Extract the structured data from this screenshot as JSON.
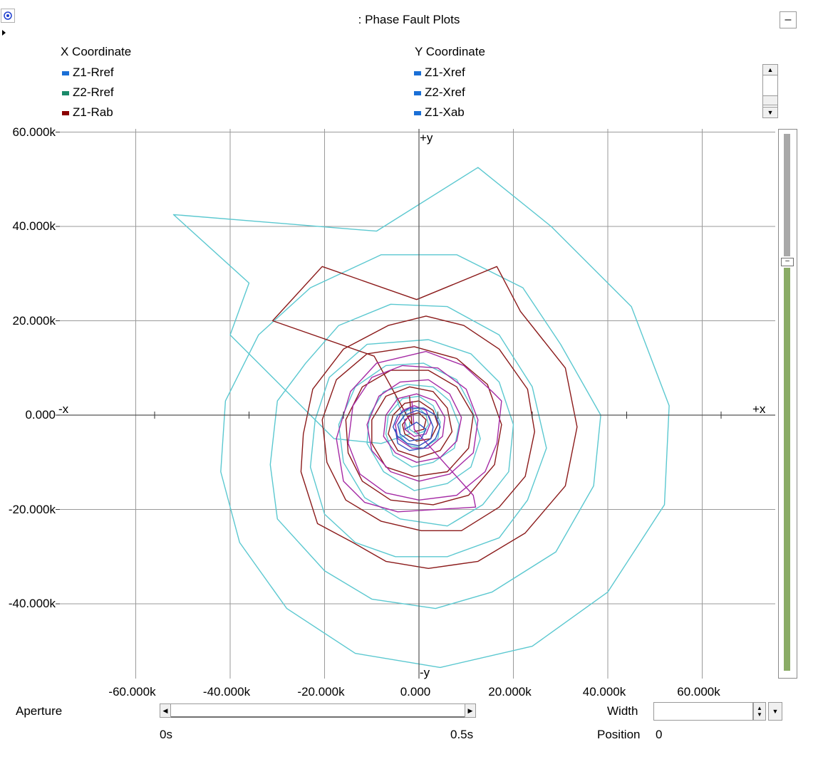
{
  "window": {
    "title": ": Phase Fault Plots",
    "minimize_label": "–"
  },
  "legend": {
    "x_header": "X Coordinate",
    "y_header": "Y Coordinate",
    "x_items": [
      {
        "label": "Z1-Rref",
        "color": "#1a6fd6"
      },
      {
        "label": "Z2-Rref",
        "color": "#1a8a6a"
      },
      {
        "label": "Z1-Rab",
        "color": "#8b0000"
      }
    ],
    "y_items": [
      {
        "label": "Z1-Xref",
        "color": "#1a6fd6"
      },
      {
        "label": "Z2-Xref",
        "color": "#1a6fd6"
      },
      {
        "label": "Z1-Xab",
        "color": "#1a6fd6"
      }
    ]
  },
  "axes": {
    "x_pos_label": "+x",
    "x_neg_label": "-x",
    "y_pos_label": "+y",
    "y_neg_label": "-y",
    "y_ticks": [
      "60.000k",
      "40.000k",
      "20.000k",
      "0.000",
      "-20.000k",
      "-40.000k"
    ],
    "x_ticks": [
      "-60.000k",
      "-40.000k",
      "-20.000k",
      "0.000",
      "20.000k",
      "40.000k",
      "60.000k"
    ]
  },
  "controls": {
    "aperture_label": "Aperture",
    "aperture_start": "0s",
    "aperture_end": "0.5s",
    "width_label": "Width",
    "width_value": "",
    "position_label": "Position",
    "position_value": "0"
  },
  "chart_data": {
    "type": "scatter",
    "title": ": Phase Fault Plots",
    "xlim": [
      -60000,
      70000
    ],
    "ylim": [
      -55000,
      60000
    ],
    "grid": true,
    "legend_placement": "top",
    "series": [
      {
        "color": "#5bc8d0",
        "points": [
          [
            -5000,
            4000
          ],
          [
            -2000,
            -4000
          ],
          [
            -8000,
            -6000
          ],
          [
            -18000,
            -5000
          ],
          [
            -40000,
            17000
          ],
          [
            -36000,
            28000
          ],
          [
            -52000,
            42500
          ],
          [
            -9000,
            39000
          ],
          [
            12500,
            52500
          ],
          [
            28000,
            40000
          ],
          [
            45000,
            23000
          ],
          [
            53000,
            2000
          ],
          [
            52000,
            -19000
          ],
          [
            40000,
            -37500
          ],
          [
            24000,
            -49000
          ],
          [
            4500,
            -53500
          ],
          [
            -13500,
            -50500
          ],
          [
            -28000,
            -41000
          ],
          [
            -38000,
            -27000
          ],
          [
            -42000,
            -12000
          ],
          [
            -41000,
            3000
          ],
          [
            -34000,
            17000
          ],
          [
            -23000,
            27000
          ],
          [
            -8000,
            34000
          ],
          [
            8000,
            34000
          ],
          [
            22000,
            27000
          ],
          [
            30000,
            15000
          ],
          [
            38500,
            0
          ],
          [
            37000,
            -15000
          ],
          [
            29000,
            -29000
          ],
          [
            15500,
            -37500
          ],
          [
            3500,
            -41000
          ],
          [
            -10000,
            -39000
          ],
          [
            -20000,
            -33000
          ],
          [
            -30000,
            -22000
          ],
          [
            -31500,
            -10500
          ],
          [
            -30000,
            3000
          ],
          [
            -24000,
            11000
          ],
          [
            -17000,
            19000
          ],
          [
            -6000,
            23500
          ],
          [
            6000,
            23000
          ],
          [
            17000,
            17000
          ],
          [
            24000,
            6000
          ],
          [
            27000,
            -7000
          ],
          [
            23000,
            -18000
          ],
          [
            17000,
            -26000
          ],
          [
            6000,
            -30000
          ],
          [
            -5000,
            -30000
          ],
          [
            -13500,
            -27000
          ],
          [
            -20000,
            -21000
          ],
          [
            -23000,
            -11000
          ],
          [
            -22000,
            -1000
          ],
          [
            -19000,
            8000
          ],
          [
            -11000,
            15000
          ],
          [
            2000,
            16000
          ],
          [
            11000,
            13000
          ],
          [
            17000,
            7000
          ],
          [
            20000,
            -2000
          ],
          [
            19000,
            -12000
          ],
          [
            13500,
            -19000
          ],
          [
            6000,
            -23500
          ],
          [
            -4000,
            -22000
          ],
          [
            -11500,
            -17500
          ],
          [
            -16000,
            -10000
          ],
          [
            -17000,
            -2000
          ],
          [
            -13500,
            6000
          ],
          [
            -7000,
            10500
          ],
          [
            1000,
            11000
          ],
          [
            8000,
            7500
          ],
          [
            11000,
            2000
          ],
          [
            13000,
            -5000
          ],
          [
            11000,
            -11000
          ],
          [
            6000,
            -14500
          ],
          [
            -1000,
            -16000
          ],
          [
            -7500,
            -12000
          ],
          [
            -11000,
            -6000
          ],
          [
            -10500,
            0
          ],
          [
            -7500,
            5000
          ],
          [
            -2500,
            6500
          ],
          [
            3000,
            6000
          ],
          [
            6500,
            3000
          ],
          [
            8500,
            -2000
          ],
          [
            7500,
            -7000
          ],
          [
            3000,
            -10000
          ],
          [
            -1500,
            -11000
          ],
          [
            -5500,
            -8500
          ],
          [
            -7000,
            -4000
          ],
          [
            -6500,
            0
          ],
          [
            -3500,
            3500
          ],
          [
            0,
            4000
          ],
          [
            3000,
            2000
          ],
          [
            4500,
            -1500
          ],
          [
            4000,
            -5000
          ],
          [
            1000,
            -7000
          ],
          [
            -2000,
            -6500
          ],
          [
            -4000,
            -4500
          ],
          [
            -4000,
            -1500
          ],
          [
            -2500,
            1000
          ],
          [
            0,
            1500
          ],
          [
            1500,
            0
          ],
          [
            2000,
            -2000
          ],
          [
            1000,
            -3500
          ],
          [
            -500,
            -4000
          ],
          [
            -2000,
            -3000
          ],
          [
            -2000,
            -1500
          ]
        ]
      },
      {
        "color": "#8b1a1a",
        "points": [
          [
            -2000,
            4000
          ],
          [
            -1500,
            -2000
          ],
          [
            -9500,
            12500
          ],
          [
            -31000,
            20000
          ],
          [
            -20500,
            31500
          ],
          [
            -500,
            24500
          ],
          [
            16500,
            31500
          ],
          [
            21500,
            22000
          ],
          [
            31000,
            10000
          ],
          [
            33500,
            -2500
          ],
          [
            31000,
            -15000
          ],
          [
            22500,
            -25000
          ],
          [
            12500,
            -31000
          ],
          [
            2000,
            -32500
          ],
          [
            -7000,
            -31000
          ],
          [
            -14000,
            -27000
          ],
          [
            -21500,
            -23000
          ],
          [
            -25000,
            -12000
          ],
          [
            -24500,
            -4000
          ],
          [
            -22500,
            5500
          ],
          [
            -16000,
            14000
          ],
          [
            -6500,
            19000
          ],
          [
            1500,
            21000
          ],
          [
            9500,
            19000
          ],
          [
            17000,
            14000
          ],
          [
            23000,
            5500
          ],
          [
            24500,
            -3500
          ],
          [
            22500,
            -13000
          ],
          [
            17000,
            -19500
          ],
          [
            9000,
            -24500
          ],
          [
            500,
            -24500
          ],
          [
            -8000,
            -22500
          ],
          [
            -15500,
            -18000
          ],
          [
            -19500,
            -10000
          ],
          [
            -20500,
            -1000
          ],
          [
            -17500,
            7500
          ],
          [
            -11000,
            13000
          ],
          [
            -1000,
            14500
          ],
          [
            8000,
            12000
          ],
          [
            14500,
            6500
          ],
          [
            17500,
            -2000
          ],
          [
            16000,
            -10500
          ],
          [
            10500,
            -17000
          ],
          [
            3000,
            -19000
          ],
          [
            -6000,
            -18000
          ],
          [
            -12000,
            -14000
          ],
          [
            -15000,
            -8000
          ],
          [
            -15500,
            -1000
          ],
          [
            -12000,
            6000
          ],
          [
            -6000,
            9500
          ],
          [
            2000,
            9500
          ],
          [
            8000,
            6000
          ],
          [
            11500,
            0
          ],
          [
            10500,
            -7000
          ],
          [
            6000,
            -12000
          ],
          [
            -1000,
            -13000
          ],
          [
            -7000,
            -11000
          ],
          [
            -10000,
            -6000
          ],
          [
            -10000,
            -1000
          ],
          [
            -7000,
            4000
          ],
          [
            -2000,
            6000
          ],
          [
            3000,
            5000
          ],
          [
            6000,
            1500
          ],
          [
            7000,
            -3500
          ],
          [
            4500,
            -7500
          ],
          [
            0,
            -9000
          ],
          [
            -4500,
            -7500
          ],
          [
            -6500,
            -4000
          ],
          [
            -5500,
            0
          ],
          [
            -3000,
            2500
          ],
          [
            0,
            3000
          ],
          [
            3000,
            1000
          ],
          [
            4000,
            -2000
          ],
          [
            2500,
            -5000
          ],
          [
            -500,
            -5500
          ],
          [
            -3000,
            -4000
          ],
          [
            -3500,
            -2000
          ],
          [
            -2000,
            0
          ],
          [
            0,
            500
          ],
          [
            1500,
            -1000
          ],
          [
            1000,
            -3000
          ],
          [
            -1000,
            -3500
          ]
        ]
      },
      {
        "color": "#a52aa5",
        "points": [
          [
            -1500,
            3000
          ],
          [
            -1000,
            -3000
          ],
          [
            11500,
            -17000
          ],
          [
            12000,
            -19500
          ],
          [
            -4500,
            -20500
          ],
          [
            -11500,
            -18500
          ],
          [
            -16000,
            -14000
          ],
          [
            -17500,
            -5000
          ],
          [
            -14500,
            5000
          ],
          [
            -9000,
            11000
          ],
          [
            1500,
            13500
          ],
          [
            9500,
            10500
          ],
          [
            15500,
            5000
          ],
          [
            17500,
            3000
          ],
          [
            16500,
            -6000
          ],
          [
            14000,
            -12000
          ],
          [
            8000,
            -17000
          ],
          [
            0,
            -18000
          ],
          [
            -7000,
            -16500
          ],
          [
            -12500,
            -12500
          ],
          [
            -15000,
            -6000
          ],
          [
            -14000,
            2000
          ],
          [
            -10000,
            8000
          ],
          [
            -3500,
            10500
          ],
          [
            4000,
            10000
          ],
          [
            10000,
            5500
          ],
          [
            12500,
            -1000
          ],
          [
            11500,
            -8000
          ],
          [
            6500,
            -12500
          ],
          [
            0,
            -14000
          ],
          [
            -6000,
            -12000
          ],
          [
            -10000,
            -7500
          ],
          [
            -11000,
            -2000
          ],
          [
            -8500,
            4000
          ],
          [
            -4000,
            7000
          ],
          [
            2000,
            7500
          ],
          [
            6500,
            4500
          ],
          [
            9000,
            -500
          ],
          [
            8000,
            -5500
          ],
          [
            4500,
            -9000
          ],
          [
            -500,
            -10000
          ],
          [
            -5000,
            -8000
          ],
          [
            -7500,
            -4500
          ],
          [
            -7000,
            0
          ],
          [
            -4500,
            3500
          ],
          [
            -500,
            4500
          ],
          [
            3500,
            3000
          ],
          [
            5500,
            -500
          ],
          [
            5000,
            -4500
          ],
          [
            2000,
            -7000
          ],
          [
            -1500,
            -7000
          ],
          [
            -4500,
            -5000
          ],
          [
            -5000,
            -2000
          ],
          [
            -3500,
            1000
          ],
          [
            -1000,
            2000
          ],
          [
            1500,
            1000
          ],
          [
            2500,
            -1500
          ],
          [
            1500,
            -4000
          ],
          [
            -1000,
            -4500
          ],
          [
            -3000,
            -3000
          ],
          [
            -3000,
            -1000
          ],
          [
            -1500,
            0
          ]
        ]
      },
      {
        "color": "#3050c0",
        "points": [
          [
            -3000,
            -3000
          ],
          [
            -500,
            -1500
          ],
          [
            1500,
            -3000
          ],
          [
            500,
            -5000
          ],
          [
            -2000,
            -5500
          ],
          [
            -4000,
            -4000
          ],
          [
            -4500,
            -2000
          ],
          [
            -3000,
            0
          ],
          [
            -500,
            1000
          ],
          [
            2000,
            0
          ],
          [
            3000,
            -2500
          ],
          [
            2500,
            -5000
          ],
          [
            0,
            -6500
          ],
          [
            -2500,
            -6000
          ],
          [
            -4500,
            -4500
          ],
          [
            -5500,
            -2500
          ],
          [
            -4500,
            0
          ],
          [
            -2000,
            1500
          ],
          [
            1000,
            1500
          ],
          [
            3500,
            0
          ],
          [
            4500,
            -2500
          ],
          [
            3500,
            -5000
          ],
          [
            1000,
            -7000
          ],
          [
            -2000,
            -7500
          ],
          [
            -4500,
            -6000
          ],
          [
            -5000,
            -3000
          ]
        ]
      }
    ]
  }
}
